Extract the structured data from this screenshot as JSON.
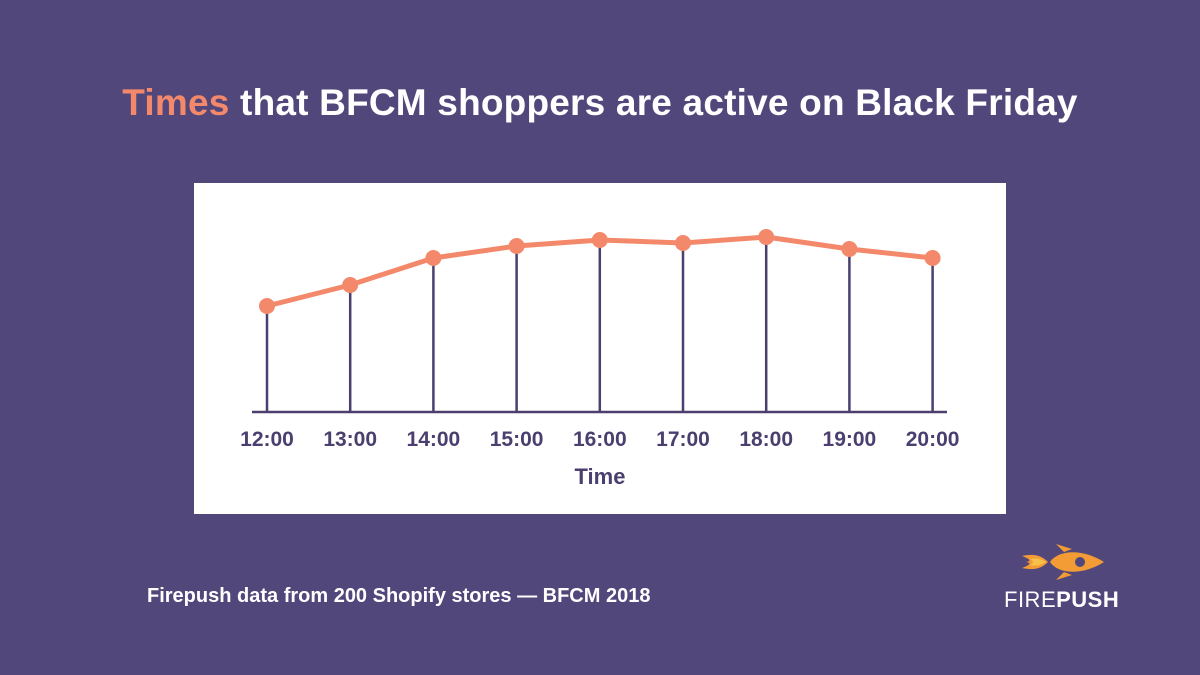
{
  "title": {
    "accent": "Times",
    "rest": " that BFCM shoppers are active on Black Friday"
  },
  "footer": "Firepush data from 200 Shopify stores — BFCM 2018",
  "logo": {
    "part1": "FIRE",
    "part2": "PUSH"
  },
  "colors": {
    "background": "#52477b",
    "accent": "#f3896a",
    "axis": "#4a3f6e",
    "card": "#ffffff"
  },
  "chart_data": {
    "type": "line",
    "categories": [
      "12:00",
      "13:00",
      "14:00",
      "15:00",
      "16:00",
      "17:00",
      "18:00",
      "19:00",
      "20:00"
    ],
    "values": [
      45,
      52,
      61,
      65,
      67,
      66,
      68,
      64,
      61
    ],
    "xlabel": "Time",
    "ylabel": "",
    "grid": false,
    "legend": "none"
  }
}
